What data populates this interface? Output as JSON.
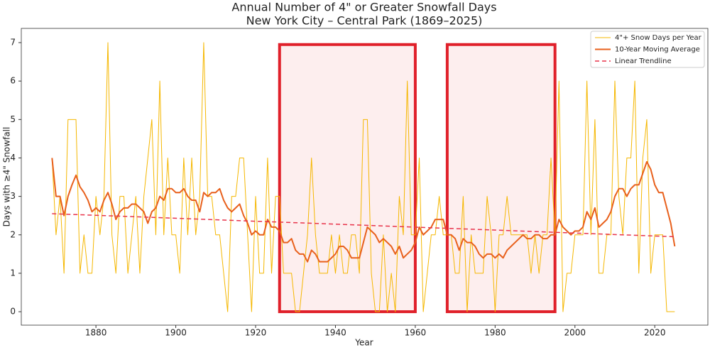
{
  "chart_data": {
    "type": "line",
    "title": [
      "Annual Number of 4\" or Greater Snowfall Days",
      "New York City – Central Park (1869–2025)"
    ],
    "x_label": "Year",
    "y_label": "Days with ≥4\" Snowfall",
    "x": [
      1869,
      1870,
      1871,
      1872,
      1873,
      1874,
      1875,
      1876,
      1877,
      1878,
      1879,
      1880,
      1881,
      1882,
      1883,
      1884,
      1885,
      1886,
      1887,
      1888,
      1889,
      1890,
      1891,
      1892,
      1893,
      1894,
      1895,
      1896,
      1897,
      1898,
      1899,
      1900,
      1901,
      1902,
      1903,
      1904,
      1905,
      1906,
      1907,
      1908,
      1909,
      1910,
      1911,
      1912,
      1913,
      1914,
      1915,
      1916,
      1917,
      1918,
      1919,
      1920,
      1921,
      1922,
      1923,
      1924,
      1925,
      1926,
      1927,
      1928,
      1929,
      1930,
      1931,
      1932,
      1933,
      1934,
      1935,
      1936,
      1937,
      1938,
      1939,
      1940,
      1941,
      1942,
      1943,
      1944,
      1945,
      1946,
      1947,
      1948,
      1949,
      1950,
      1951,
      1952,
      1953,
      1954,
      1955,
      1956,
      1957,
      1958,
      1959,
      1960,
      1961,
      1962,
      1963,
      1964,
      1965,
      1966,
      1967,
      1968,
      1969,
      1970,
      1971,
      1972,
      1973,
      1974,
      1975,
      1976,
      1977,
      1978,
      1979,
      1980,
      1981,
      1982,
      1983,
      1984,
      1985,
      1986,
      1987,
      1988,
      1989,
      1990,
      1991,
      1992,
      1993,
      1994,
      1995,
      1996,
      1997,
      1998,
      1999,
      2000,
      2001,
      2002,
      2003,
      2004,
      2005,
      2006,
      2007,
      2008,
      2009,
      2010,
      2011,
      2012,
      2013,
      2014,
      2015,
      2016,
      2017,
      2018,
      2019,
      2020,
      2021,
      2022,
      2023,
      2024,
      2025
    ],
    "series": [
      {
        "name": "4\"+ Snow Days per Year",
        "color": "#f5b700",
        "width": 1,
        "values": [
          4,
          2,
          3,
          1,
          5,
          5,
          5,
          1,
          2,
          1,
          1,
          3,
          2,
          3,
          7,
          2,
          1,
          3,
          3,
          1,
          2,
          3,
          1,
          3,
          4,
          5,
          2,
          6,
          2,
          4,
          2,
          2,
          1,
          4,
          2,
          4,
          2,
          3,
          7,
          3,
          3,
          2,
          2,
          1,
          0,
          3,
          3,
          4,
          4,
          2,
          0,
          3,
          1,
          1,
          4,
          1,
          3,
          3,
          1,
          1,
          1,
          0,
          0,
          1,
          2,
          4,
          2,
          1,
          1,
          1,
          2,
          1,
          2,
          1,
          1,
          2,
          2,
          1,
          5,
          5,
          1,
          0,
          0,
          2,
          0,
          1,
          0,
          3,
          2,
          6,
          2,
          2,
          4,
          0,
          1,
          2,
          2,
          3,
          2,
          2,
          2,
          1,
          1,
          3,
          0,
          2,
          1,
          1,
          1,
          3,
          2,
          0,
          2,
          2,
          3,
          2,
          2,
          2,
          2,
          2,
          1,
          2,
          1,
          2,
          2,
          4,
          2,
          6,
          0,
          1,
          1,
          2,
          2,
          2,
          6,
          2,
          5,
          1,
          1,
          2,
          2,
          6,
          3,
          2,
          4,
          4,
          6,
          1,
          4,
          5,
          1,
          2,
          2,
          2,
          0,
          0,
          0
        ]
      },
      {
        "name": "10-Year Moving Average",
        "color": "#e8601c",
        "width": 2,
        "values": [
          4.0,
          3.0,
          3.0,
          2.5,
          3.0,
          3.3,
          3.55,
          3.25,
          3.1,
          2.9,
          2.6,
          2.7,
          2.6,
          2.9,
          3.1,
          2.8,
          2.4,
          2.6,
          2.7,
          2.7,
          2.8,
          2.8,
          2.7,
          2.6,
          2.3,
          2.6,
          2.7,
          3.0,
          2.9,
          3.2,
          3.2,
          3.1,
          3.1,
          3.2,
          3.0,
          2.9,
          2.9,
          2.6,
          3.1,
          3.0,
          3.1,
          3.1,
          3.2,
          2.9,
          2.7,
          2.6,
          2.7,
          2.8,
          2.5,
          2.3,
          2.0,
          2.1,
          2.0,
          2.0,
          2.4,
          2.2,
          2.2,
          2.1,
          1.8,
          1.8,
          1.9,
          1.6,
          1.5,
          1.5,
          1.3,
          1.6,
          1.5,
          1.3,
          1.3,
          1.3,
          1.4,
          1.5,
          1.7,
          1.7,
          1.6,
          1.4,
          1.4,
          1.4,
          1.8,
          2.2,
          2.1,
          2.0,
          1.8,
          1.9,
          1.8,
          1.7,
          1.5,
          1.7,
          1.4,
          1.5,
          1.6,
          1.8,
          2.2,
          2.0,
          2.1,
          2.2,
          2.4,
          2.4,
          2.4,
          2.0,
          2.0,
          1.9,
          1.6,
          1.9,
          1.8,
          1.8,
          1.7,
          1.5,
          1.4,
          1.5,
          1.5,
          1.4,
          1.5,
          1.4,
          1.6,
          1.7,
          1.8,
          1.9,
          2.0,
          1.9,
          1.9,
          2.0,
          2.0,
          1.9,
          1.9,
          2.0,
          2.0,
          2.4,
          2.2,
          2.1,
          2.0,
          2.1,
          2.1,
          2.2,
          2.6,
          2.4,
          2.7,
          2.2,
          2.3,
          2.4,
          2.6,
          3.0,
          3.2,
          3.2,
          3.0,
          3.2,
          3.3,
          3.3,
          3.6,
          3.9,
          3.7,
          3.3,
          3.1,
          3.1,
          2.7,
          2.3,
          1.7
        ]
      },
      {
        "name": "Linear Trendline",
        "color": "#e8334a",
        "width": 1.5,
        "dash": "6,4",
        "x": [
          1869,
          2025
        ],
        "values": [
          2.55,
          1.95
        ]
      }
    ],
    "highlight_spans": [
      {
        "x": [
          1926,
          1960
        ],
        "y": [
          0,
          6.95
        ]
      },
      {
        "x": [
          1968,
          1995
        ],
        "y": [
          0,
          6.95
        ]
      }
    ],
    "highlight_color": "#e0202a",
    "xlim": [
      1861.3,
      2033.3
    ],
    "ylim": [
      -0.35,
      7.37
    ],
    "xticks": [
      1880,
      1900,
      1920,
      1940,
      1960,
      1980,
      2000,
      2020
    ],
    "yticks": [
      0,
      1,
      2,
      3,
      4,
      5,
      6,
      7
    ],
    "grid": false,
    "legend": "upper right"
  }
}
